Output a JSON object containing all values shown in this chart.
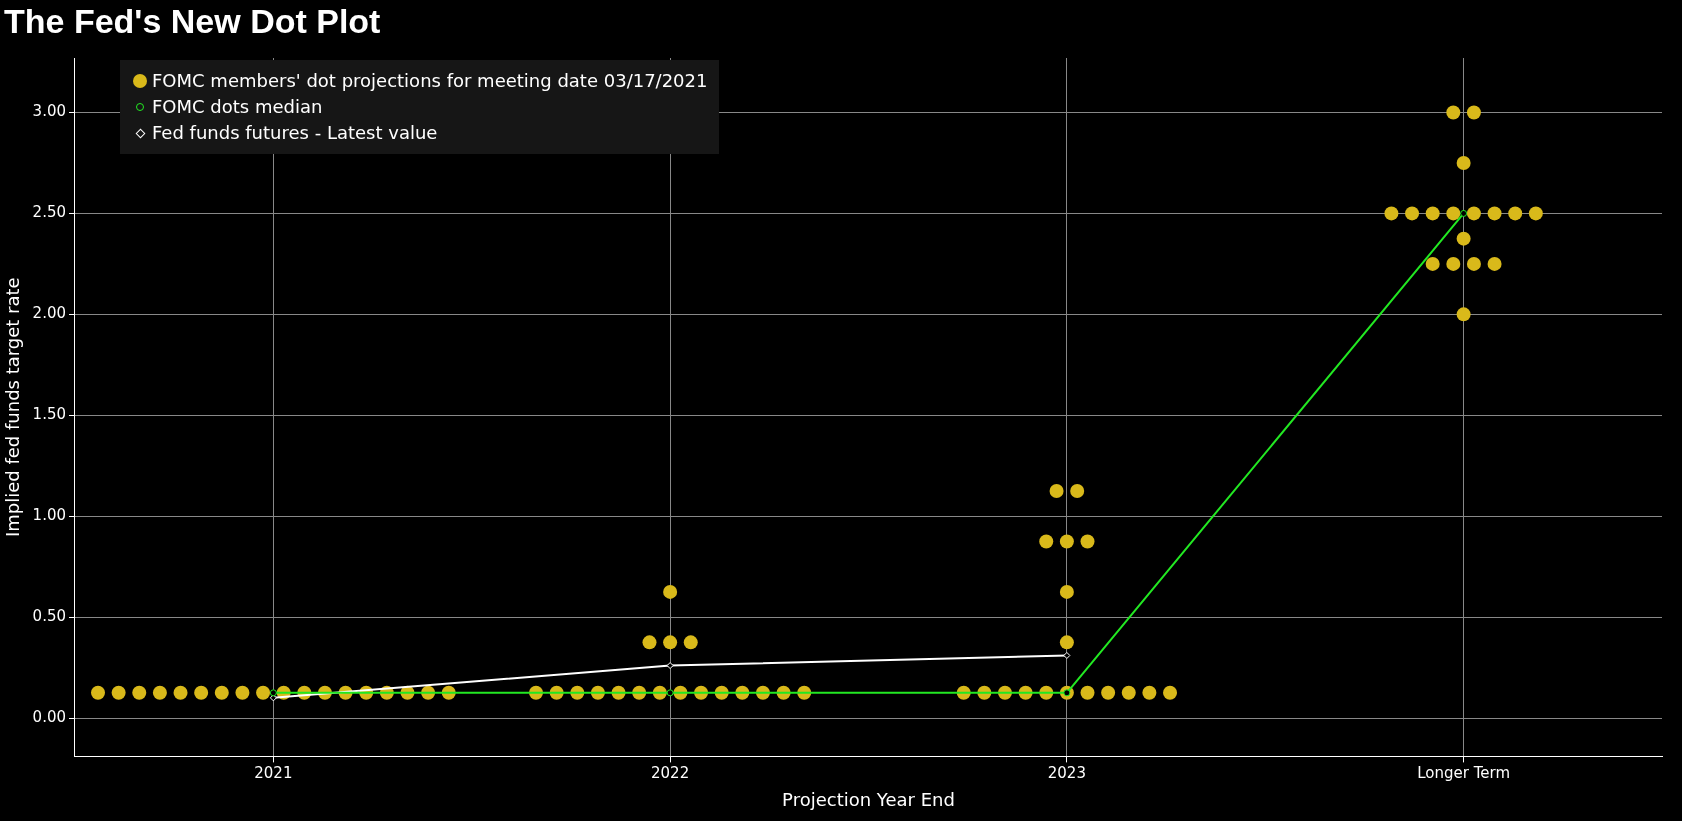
{
  "chart_data": {
    "type": "scatter",
    "title": "The Fed's New Dot Plot",
    "xlabel": "Projection Year End",
    "ylabel": "Implied fed funds target rate",
    "categories": [
      "2021",
      "2022",
      "2023",
      "Longer Term"
    ],
    "ylim": [
      -0.19,
      3.27
    ],
    "yticks": [
      {
        "value": 0,
        "label": "0.00"
      },
      {
        "value": 0.5,
        "label": "0.50"
      },
      {
        "value": 1,
        "label": "1.00"
      },
      {
        "value": 1.5,
        "label": "1.50"
      },
      {
        "value": 2,
        "label": "2.00"
      },
      {
        "value": 2.5,
        "label": "2.50"
      },
      {
        "value": 3,
        "label": "3.00"
      }
    ],
    "grid": true,
    "legend": "top left",
    "series": [
      {
        "name": "FOMC members' dot projections for meeting date 03/17/2021",
        "marker": "circle",
        "color": "#d9b91a",
        "values": [
          0.125,
          0.125,
          0.125,
          2.0
        ]
      },
      {
        "marker": "circle",
        "color": "#d9b91a",
        "values": [
          0.125,
          0.125,
          0.125,
          2.25
        ]
      },
      {
        "marker": "circle",
        "color": "#d9b91a",
        "values": [
          0.125,
          0.125,
          0.125,
          2.25
        ]
      },
      {
        "marker": "circle",
        "color": "#d9b91a",
        "values": [
          0.125,
          0.125,
          0.125,
          2.25
        ]
      },
      {
        "marker": "circle",
        "color": "#d9b91a",
        "values": [
          0.125,
          0.125,
          0.125,
          2.25
        ]
      },
      {
        "marker": "circle",
        "color": "#d9b91a",
        "values": [
          0.125,
          0.125,
          0.125,
          2.375
        ]
      },
      {
        "marker": "circle",
        "color": "#d9b91a",
        "values": [
          0.125,
          0.125,
          0.125,
          2.5
        ]
      },
      {
        "marker": "circle",
        "color": "#d9b91a",
        "values": [
          0.125,
          0.125,
          0.125,
          2.5
        ]
      },
      {
        "marker": "circle",
        "color": "#d9b91a",
        "values": [
          0.125,
          0.125,
          0.125,
          2.5
        ]
      },
      {
        "marker": "circle",
        "color": "#d9b91a",
        "values": [
          0.125,
          0.125,
          0.125,
          2.5
        ]
      },
      {
        "marker": "circle",
        "color": "#d9b91a",
        "values": [
          0.125,
          0.125,
          0.125,
          2.5
        ]
      },
      {
        "marker": "circle",
        "color": "#d9b91a",
        "values": [
          0.125,
          0.125,
          0.375,
          2.5
        ]
      },
      {
        "marker": "circle",
        "color": "#d9b91a",
        "values": [
          0.125,
          0.125,
          0.625,
          2.5
        ]
      },
      {
        "marker": "circle",
        "color": "#d9b91a",
        "values": [
          0.125,
          0.125,
          0.875,
          2.5
        ]
      },
      {
        "marker": "circle",
        "color": "#d9b91a",
        "values": [
          0.125,
          0.375,
          0.875,
          2.75
        ]
      },
      {
        "marker": "circle",
        "color": "#d9b91a",
        "values": [
          0.125,
          0.375,
          0.875,
          3.0
        ]
      },
      {
        "marker": "circle",
        "color": "#d9b91a",
        "values": [
          0.125,
          0.375,
          1.125,
          3.0
        ]
      },
      {
        "marker": "circle",
        "color": "#d9b91a",
        "values": [
          0.125,
          0.625,
          1.125,
          null
        ]
      },
      {
        "name": "FOMC dots median",
        "type": "line",
        "marker": "circle",
        "color": "#22e822",
        "values": [
          0.125,
          0.125,
          0.125,
          2.5
        ]
      },
      {
        "name": "Fed funds futures - Latest value",
        "type": "line",
        "marker": "diamond",
        "color": "#ffffff",
        "values": [
          0.1,
          0.26,
          0.31,
          null
        ]
      }
    ]
  }
}
